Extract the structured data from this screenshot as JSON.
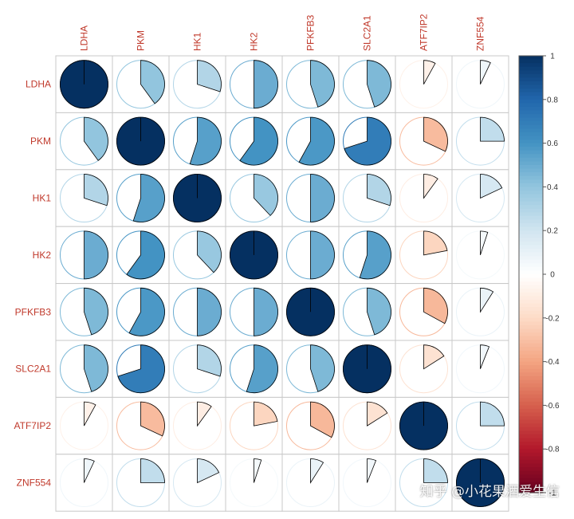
{
  "chart_data": {
    "type": "heatmap",
    "style": "pie correlation matrix",
    "variables": [
      "LDHA",
      "PKM",
      "HK1",
      "HK2",
      "PFKFB3",
      "SLC2A1",
      "ATF7IP2",
      "ZNF554"
    ],
    "values": [
      [
        1.0,
        0.4,
        0.3,
        0.5,
        0.45,
        0.45,
        -0.08,
        0.07
      ],
      [
        0.4,
        1.0,
        0.55,
        0.6,
        0.58,
        0.7,
        -0.32,
        0.25
      ],
      [
        0.3,
        0.55,
        1.0,
        0.38,
        0.5,
        0.3,
        -0.1,
        0.18
      ],
      [
        0.5,
        0.6,
        0.38,
        1.0,
        0.5,
        0.55,
        -0.22,
        0.05
      ],
      [
        0.45,
        0.58,
        0.5,
        0.5,
        1.0,
        0.45,
        -0.33,
        0.09
      ],
      [
        0.45,
        0.7,
        0.3,
        0.55,
        0.45,
        1.0,
        -0.16,
        0.06
      ],
      [
        -0.08,
        -0.32,
        -0.1,
        -0.22,
        -0.33,
        -0.16,
        1.0,
        0.25
      ],
      [
        0.07,
        0.25,
        0.18,
        0.05,
        0.09,
        0.06,
        0.25,
        1.0
      ]
    ],
    "colorbar": {
      "range": [
        -1,
        1
      ],
      "ticks": [
        "1",
        "0.8",
        "0.6",
        "0.4",
        "0.2",
        "0",
        "-0.2",
        "-0.4",
        "-0.6",
        "-0.8",
        "-1"
      ]
    },
    "colors": {
      "negative": "#67001f",
      "zero": "#ffffff",
      "positive": "#053061",
      "label": "#c0392b"
    }
  },
  "watermark": "知乎 @小花果酒爱生信"
}
